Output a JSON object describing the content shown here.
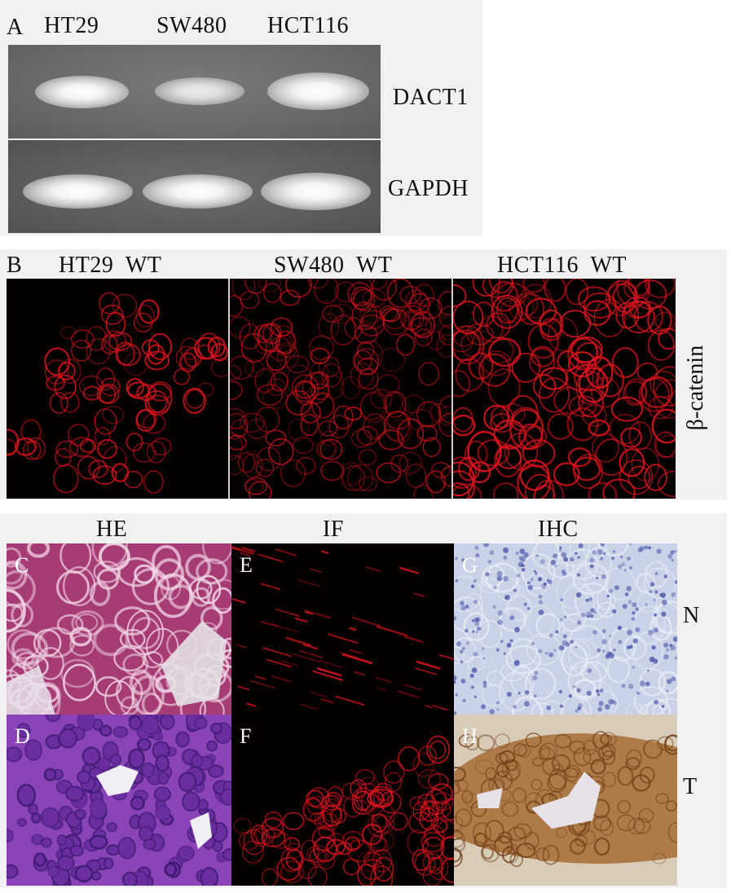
{
  "panel_a": {
    "letter": "A",
    "lanes": [
      "HT29",
      "SW480",
      "HCT116"
    ],
    "rows": [
      "DACT1",
      "GAPDH"
    ]
  },
  "panel_b": {
    "letter": "B",
    "columns": [
      "HT29  WT",
      "SW480  WT",
      "HCT116  WT"
    ],
    "marker": "β-catenin"
  },
  "panel_c": {
    "column_headers": [
      "HE",
      "IF",
      "IHC"
    ],
    "row_labels": [
      "N",
      "T"
    ],
    "tiles": [
      "C",
      "E",
      "G",
      "D",
      "F",
      "H"
    ]
  },
  "colors": {
    "gel_background": "#686868",
    "gel_band": "#ffffff",
    "if_background": "#050000",
    "if_stain": "#e0141e",
    "he_pink": "#b2427a",
    "he_purple": "#7a3ab0",
    "ihc_blue": "#5560b0",
    "ihc_brown": "#a0662c",
    "panel_bg": "#f1f1f1"
  }
}
